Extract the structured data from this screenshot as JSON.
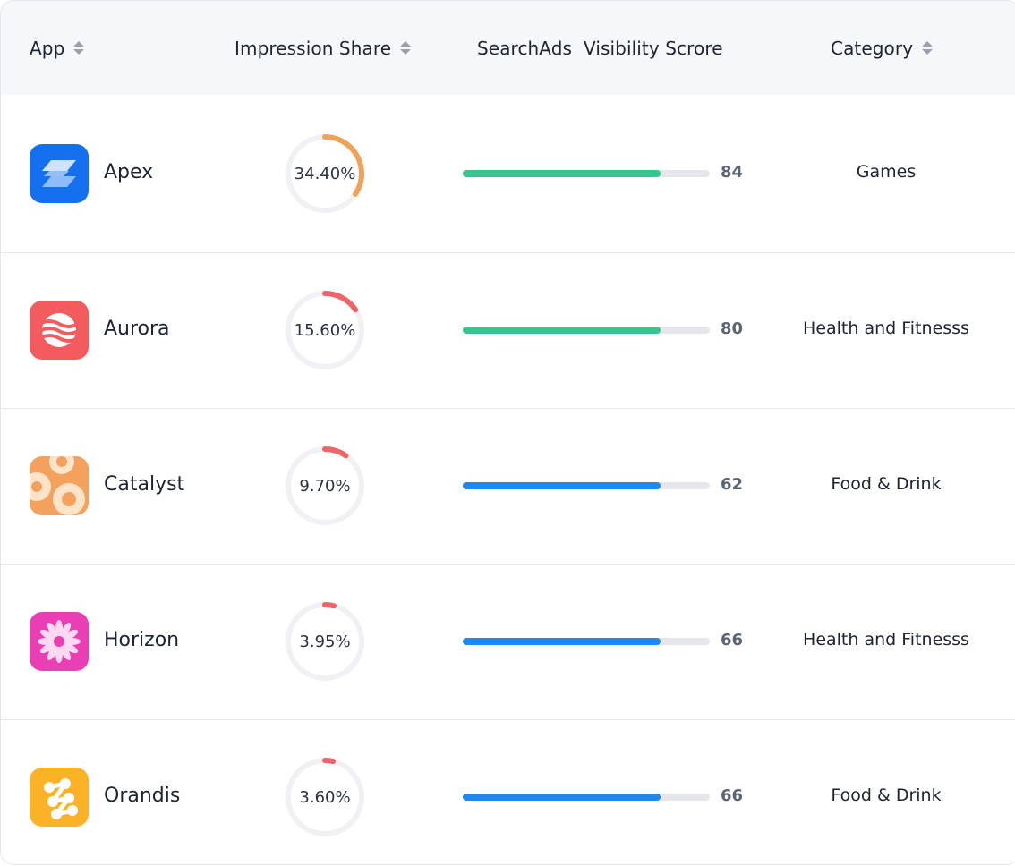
{
  "columns": {
    "app": "App",
    "impression_share": "Impression Share",
    "visibility": "SearchAds  Visibility Scrore",
    "category": "Category"
  },
  "rows": [
    {
      "name": "Apex",
      "icon": "apex-logo-icon",
      "impression_share": "34.40%",
      "share_value": 34.4,
      "share_color": "#f0a25a",
      "score": "84",
      "score_value": 84,
      "bar_color": "#3ac48d",
      "category": "Games"
    },
    {
      "name": "Aurora",
      "icon": "aurora-logo-icon",
      "impression_share": "15.60%",
      "share_value": 15.6,
      "share_color": "#ef6468",
      "score": "80",
      "score_value": 80,
      "bar_color": "#3ac48d",
      "category": "Health and Fitnesss"
    },
    {
      "name": "Catalyst",
      "icon": "catalyst-logo-icon",
      "impression_share": "9.70%",
      "share_value": 9.7,
      "share_color": "#ef6468",
      "score": "62",
      "score_value": 62,
      "bar_color": "#1d89f0",
      "category": "Food & Drink"
    },
    {
      "name": "Horizon",
      "icon": "horizon-logo-icon",
      "impression_share": "3.95%",
      "share_value": 3.95,
      "share_color": "#ef6468",
      "score": "66",
      "score_value": 66,
      "bar_color": "#1d89f0",
      "category": "Health and Fitnesss"
    },
    {
      "name": "Orandis",
      "icon": "orandis-logo-icon",
      "impression_share": "3.60%",
      "share_value": 3.6,
      "share_color": "#ef6468",
      "score": "66",
      "score_value": 66,
      "bar_color": "#1d89f0",
      "category": "Food & Drink"
    }
  ]
}
